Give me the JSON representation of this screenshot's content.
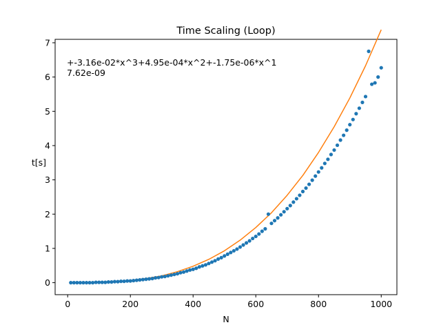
{
  "chart_data": {
    "type": "scatter",
    "title": "Time Scaling (Loop)",
    "xlabel": "N",
    "ylabel": "t[s]",
    "xlim": [
      -40,
      1050
    ],
    "ylim": [
      -0.35,
      7.1
    ],
    "xticks": [
      0,
      200,
      400,
      600,
      800,
      1000
    ],
    "xtick_labels": [
      "0",
      "200",
      "400",
      "600",
      "800",
      "1000"
    ],
    "yticks": [
      0,
      1,
      2,
      3,
      4,
      5,
      6,
      7
    ],
    "ytick_labels": [
      "0",
      "1",
      "2",
      "3",
      "4",
      "5",
      "6",
      "7"
    ],
    "grid": false,
    "annotation": {
      "line1": "+-3.16e-02*x^3+4.95e-04*x^2+-1.75e-06*x^1",
      "line2": "7.62e-09"
    },
    "series": [
      {
        "kind": "scatter",
        "color": "#1f77b4",
        "x": [
          10,
          20,
          30,
          40,
          50,
          60,
          70,
          80,
          90,
          100,
          110,
          120,
          130,
          140,
          150,
          160,
          170,
          180,
          190,
          200,
          210,
          220,
          230,
          240,
          250,
          260,
          270,
          280,
          290,
          300,
          310,
          320,
          330,
          340,
          350,
          360,
          370,
          380,
          390,
          400,
          410,
          420,
          430,
          440,
          450,
          460,
          470,
          480,
          490,
          500,
          510,
          520,
          530,
          540,
          550,
          560,
          570,
          580,
          590,
          600,
          610,
          620,
          630,
          640,
          650,
          660,
          670,
          680,
          690,
          700,
          710,
          720,
          730,
          740,
          750,
          760,
          770,
          780,
          790,
          800,
          810,
          820,
          830,
          840,
          850,
          860,
          870,
          880,
          890,
          900,
          910,
          920,
          930,
          940,
          950,
          960,
          970,
          980,
          990,
          1000
        ],
        "y": [
          0.0,
          0.0,
          0.0,
          0.0,
          0.0,
          0.0,
          0.0,
          0.0,
          0.01,
          0.01,
          0.01,
          0.01,
          0.02,
          0.02,
          0.03,
          0.03,
          0.04,
          0.04,
          0.05,
          0.05,
          0.06,
          0.07,
          0.08,
          0.09,
          0.1,
          0.11,
          0.12,
          0.14,
          0.15,
          0.17,
          0.18,
          0.2,
          0.22,
          0.24,
          0.26,
          0.29,
          0.31,
          0.34,
          0.37,
          0.39,
          0.42,
          0.46,
          0.49,
          0.52,
          0.56,
          0.6,
          0.64,
          0.69,
          0.73,
          0.78,
          0.83,
          0.88,
          0.93,
          0.98,
          1.04,
          1.1,
          1.16,
          1.22,
          1.29,
          1.35,
          1.42,
          1.5,
          1.57,
          2.0,
          1.73,
          1.81,
          1.89,
          1.98,
          2.07,
          2.16,
          2.25,
          2.35,
          2.45,
          2.55,
          2.66,
          2.76,
          2.87,
          2.99,
          3.11,
          3.23,
          3.35,
          3.48,
          3.6,
          3.74,
          3.87,
          4.01,
          4.16,
          4.3,
          4.45,
          4.61,
          4.76,
          4.93,
          5.09,
          5.26,
          5.43,
          6.75,
          5.79,
          5.83,
          6.0,
          6.27
        ]
      },
      {
        "kind": "line",
        "color": "#ff7f0e",
        "x": [
          10,
          50,
          100,
          150,
          200,
          250,
          300,
          350,
          400,
          450,
          500,
          550,
          600,
          650,
          700,
          750,
          800,
          850,
          900,
          950,
          1000
        ],
        "y": [
          0.0,
          0.0,
          0.01,
          0.03,
          0.06,
          0.12,
          0.2,
          0.32,
          0.48,
          0.68,
          0.93,
          1.24,
          1.61,
          2.04,
          2.55,
          3.13,
          3.8,
          4.55,
          5.39,
          6.33,
          7.38
        ]
      }
    ]
  }
}
